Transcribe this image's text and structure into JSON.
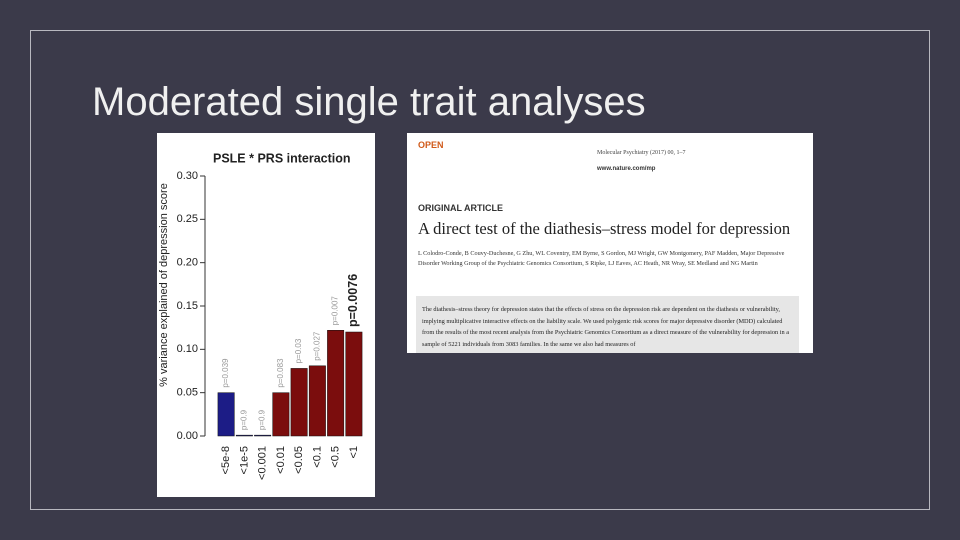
{
  "title": "Moderated single trait analyses",
  "chart_data": {
    "type": "bar",
    "title": "PSLE * PRS interaction",
    "y_label": "% variance explained of depression score",
    "categories": [
      "<5e-8",
      "<1e-5",
      "<0.001",
      "<0.01",
      "<0.05",
      "<0.1",
      "<0.5",
      "<1"
    ],
    "values": [
      0.05,
      0.001,
      0.001,
      0.05,
      0.078,
      0.081,
      0.122,
      0.12
    ],
    "value_labels": [
      "p=0.039",
      "p=0.9",
      "p=0.9",
      "p=0.083",
      "p=0.03",
      "p=0.027",
      "p=0.007",
      "p=0.0076"
    ],
    "colors": [
      "#1c1c86",
      "#1c1c86",
      "#1c1c86",
      "#7b0d0d",
      "#7b0d0d",
      "#7b0d0d",
      "#7b0d0d",
      "#7b0d0d"
    ],
    "ylim": [
      0,
      0.3
    ],
    "yticks": [
      {
        "value": 0,
        "label": "0.00"
      },
      {
        "value": 0.05,
        "label": "0.05"
      },
      {
        "value": 0.1,
        "label": "0.10"
      },
      {
        "value": 0.15,
        "label": "0.15"
      },
      {
        "value": 0.2,
        "label": "0.20"
      },
      {
        "value": 0.25,
        "label": "0.25"
      },
      {
        "value": 0.3,
        "label": "0.30"
      }
    ]
  },
  "article": {
    "open": "OPEN",
    "journal": "Molecular Psychiatry (2017) 00, 1–7",
    "url": "www.nature.com/mp",
    "section": "ORIGINAL ARTICLE",
    "headline": "A direct test of the diathesis–stress model for depression",
    "authors": "L Colodro-Conde, B Couvy-Duchesne, G Zhu, WL Coventry, EM Byrne, S Gordon, MJ Wright, GW Montgomery, PAF Madden, Major Depressive Disorder Working Group of the Psychiatric Genomics Consortium, S Ripke, LJ Eaves, AC Heath, NR Wray, SE Medland and NG Martin",
    "abstract": "The diathesis–stress theory for depression states that the effects of stress on the depression risk are dependent on the diathesis or vulnerability, implying multiplicative interactive effects on the liability scale. We used polygenic risk scores for major depressive disorder (MDD) calculated from the results of the most recent analysis from the Psychiatric Genomics Consortium as a direct measure of the vulnerability for depression in a sample of 5221 individuals from 3083 families. In the same we also had measures of"
  }
}
